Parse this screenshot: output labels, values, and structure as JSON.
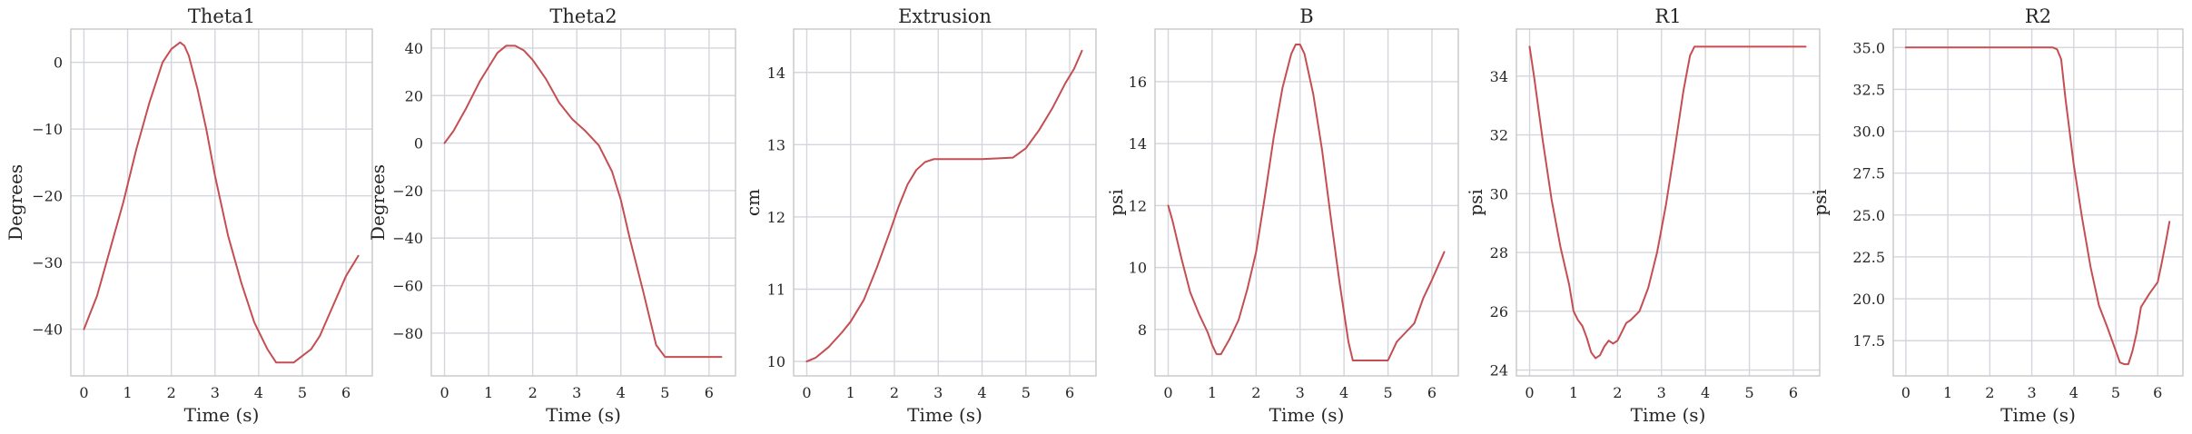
{
  "style": {
    "line_color": "#c44e52",
    "grid": true
  },
  "chart_data": [
    {
      "type": "line",
      "title": "Theta1",
      "xlabel": "Time (s)",
      "ylabel": "Degrees",
      "xlim": [
        -0.3,
        6.6
      ],
      "ylim": [
        -47,
        5
      ],
      "xticks": [
        0,
        1,
        2,
        3,
        4,
        5,
        6
      ],
      "yticks": [
        0,
        -10,
        -20,
        -30,
        -40
      ],
      "x": [
        0,
        0.3,
        0.6,
        0.9,
        1.2,
        1.5,
        1.8,
        2.0,
        2.2,
        2.3,
        2.4,
        2.6,
        2.8,
        3.0,
        3.3,
        3.6,
        3.9,
        4.2,
        4.4,
        4.6,
        4.8,
        5.0,
        5.2,
        5.4,
        5.6,
        5.8,
        6.0,
        6.28
      ],
      "y": [
        -40,
        -35,
        -28,
        -21,
        -13,
        -6,
        0,
        2,
        3,
        2.5,
        1,
        -4,
        -10,
        -17,
        -26,
        -33,
        -39,
        -43,
        -45,
        -45,
        -45,
        -44,
        -43,
        -41,
        -38,
        -35,
        -32,
        -29
      ]
    },
    {
      "type": "line",
      "title": "Theta2",
      "xlabel": "Time (s)",
      "ylabel": "Degrees",
      "xlim": [
        -0.3,
        6.6
      ],
      "ylim": [
        -98,
        48
      ],
      "xticks": [
        0,
        1,
        2,
        3,
        4,
        5,
        6
      ],
      "yticks": [
        40,
        20,
        0,
        -20,
        -40,
        -60,
        -80
      ],
      "x": [
        0,
        0.2,
        0.5,
        0.8,
        1.0,
        1.2,
        1.4,
        1.6,
        1.8,
        2.0,
        2.3,
        2.6,
        2.9,
        3.2,
        3.5,
        3.8,
        4.0,
        4.2,
        4.5,
        4.8,
        5.0,
        5.3,
        6.28
      ],
      "y": [
        0,
        5,
        15,
        26,
        32,
        38,
        41,
        41,
        39,
        35,
        27,
        17,
        10,
        5,
        -1,
        -12,
        -24,
        -40,
        -62,
        -85,
        -90,
        -90,
        -90
      ]
    },
    {
      "type": "line",
      "title": "Extrusion",
      "xlabel": "Time (s)",
      "ylabel": "cm",
      "xlim": [
        -0.3,
        6.6
      ],
      "ylim": [
        9.8,
        14.6
      ],
      "xticks": [
        0,
        1,
        2,
        3,
        4,
        5,
        6
      ],
      "yticks": [
        10,
        11,
        12,
        13,
        14
      ],
      "x": [
        0,
        0.2,
        0.5,
        0.8,
        1.0,
        1.3,
        1.6,
        1.9,
        2.1,
        2.3,
        2.5,
        2.7,
        2.9,
        3.0,
        4.0,
        4.7,
        5.0,
        5.3,
        5.6,
        5.9,
        6.1,
        6.28
      ],
      "y": [
        10,
        10.05,
        10.2,
        10.4,
        10.55,
        10.85,
        11.3,
        11.8,
        12.15,
        12.45,
        12.65,
        12.76,
        12.8,
        12.8,
        12.8,
        12.82,
        12.95,
        13.2,
        13.5,
        13.85,
        14.05,
        14.3
      ]
    },
    {
      "type": "line",
      "title": "B",
      "xlabel": "Time (s)",
      "ylabel": "psi",
      "xlim": [
        -0.3,
        6.6
      ],
      "ylim": [
        6.5,
        17.7
      ],
      "xticks": [
        0,
        1,
        2,
        3,
        4,
        5,
        6
      ],
      "yticks": [
        8,
        10,
        12,
        14,
        16
      ],
      "x": [
        0,
        0.1,
        0.3,
        0.5,
        0.7,
        0.9,
        1.0,
        1.1,
        1.2,
        1.4,
        1.6,
        1.8,
        2.0,
        2.2,
        2.4,
        2.6,
        2.8,
        2.9,
        3.0,
        3.1,
        3.3,
        3.5,
        3.7,
        3.9,
        4.1,
        4.2,
        5.0,
        5.2,
        5.4,
        5.6,
        5.8,
        6.0,
        6.28
      ],
      "y": [
        12,
        11.5,
        10.3,
        9.2,
        8.5,
        7.9,
        7.5,
        7.2,
        7.2,
        7.7,
        8.3,
        9.3,
        10.5,
        12.3,
        14.2,
        15.8,
        16.9,
        17.2,
        17.2,
        16.9,
        15.6,
        13.8,
        11.6,
        9.5,
        7.6,
        7.0,
        7.0,
        7.6,
        7.9,
        8.2,
        9.0,
        9.6,
        10.5
      ]
    },
    {
      "type": "line",
      "title": "R1",
      "xlabel": "Time (s)",
      "ylabel": "psi",
      "xlim": [
        -0.3,
        6.6
      ],
      "ylim": [
        23.8,
        35.6
      ],
      "xticks": [
        0,
        1,
        2,
        3,
        4,
        5,
        6
      ],
      "yticks": [
        24,
        26,
        28,
        30,
        32,
        34
      ],
      "x": [
        0,
        0.1,
        0.3,
        0.5,
        0.7,
        0.9,
        1.0,
        1.1,
        1.2,
        1.3,
        1.4,
        1.5,
        1.6,
        1.7,
        1.8,
        1.9,
        2.0,
        2.1,
        2.2,
        2.3,
        2.5,
        2.7,
        2.9,
        3.1,
        3.3,
        3.5,
        3.65,
        3.75,
        4.5,
        6.28
      ],
      "y": [
        35,
        34,
        31.8,
        29.8,
        28.2,
        26.9,
        26.0,
        25.7,
        25.5,
        25.1,
        24.6,
        24.4,
        24.5,
        24.8,
        25.0,
        24.9,
        25.0,
        25.3,
        25.6,
        25.7,
        26.0,
        26.8,
        28.0,
        29.6,
        31.5,
        33.5,
        34.7,
        35,
        35,
        35
      ]
    },
    {
      "type": "line",
      "title": "R2",
      "xlabel": "Time (s)",
      "ylabel": "psi",
      "xlim": [
        -0.3,
        6.6
      ],
      "ylim": [
        15.4,
        36.1
      ],
      "xticks": [
        0,
        1,
        2,
        3,
        4,
        5,
        6
      ],
      "yticks": [
        35.0,
        32.5,
        30.0,
        27.5,
        25.0,
        22.5,
        20.0,
        17.5
      ],
      "x": [
        0,
        1,
        2,
        3,
        3.5,
        3.6,
        3.7,
        3.8,
        4.0,
        4.2,
        4.4,
        4.6,
        4.8,
        5.0,
        5.1,
        5.2,
        5.3,
        5.4,
        5.5,
        5.6,
        5.8,
        6.0,
        6.1,
        6.2,
        6.28
      ],
      "y": [
        35,
        35,
        35,
        35,
        35,
        34.9,
        34.3,
        32.0,
        28.0,
        24.8,
        21.9,
        19.6,
        18.3,
        16.9,
        16.2,
        16.1,
        16.1,
        16.9,
        18.0,
        19.5,
        20.3,
        21.0,
        22.2,
        23.5,
        24.6
      ]
    }
  ]
}
